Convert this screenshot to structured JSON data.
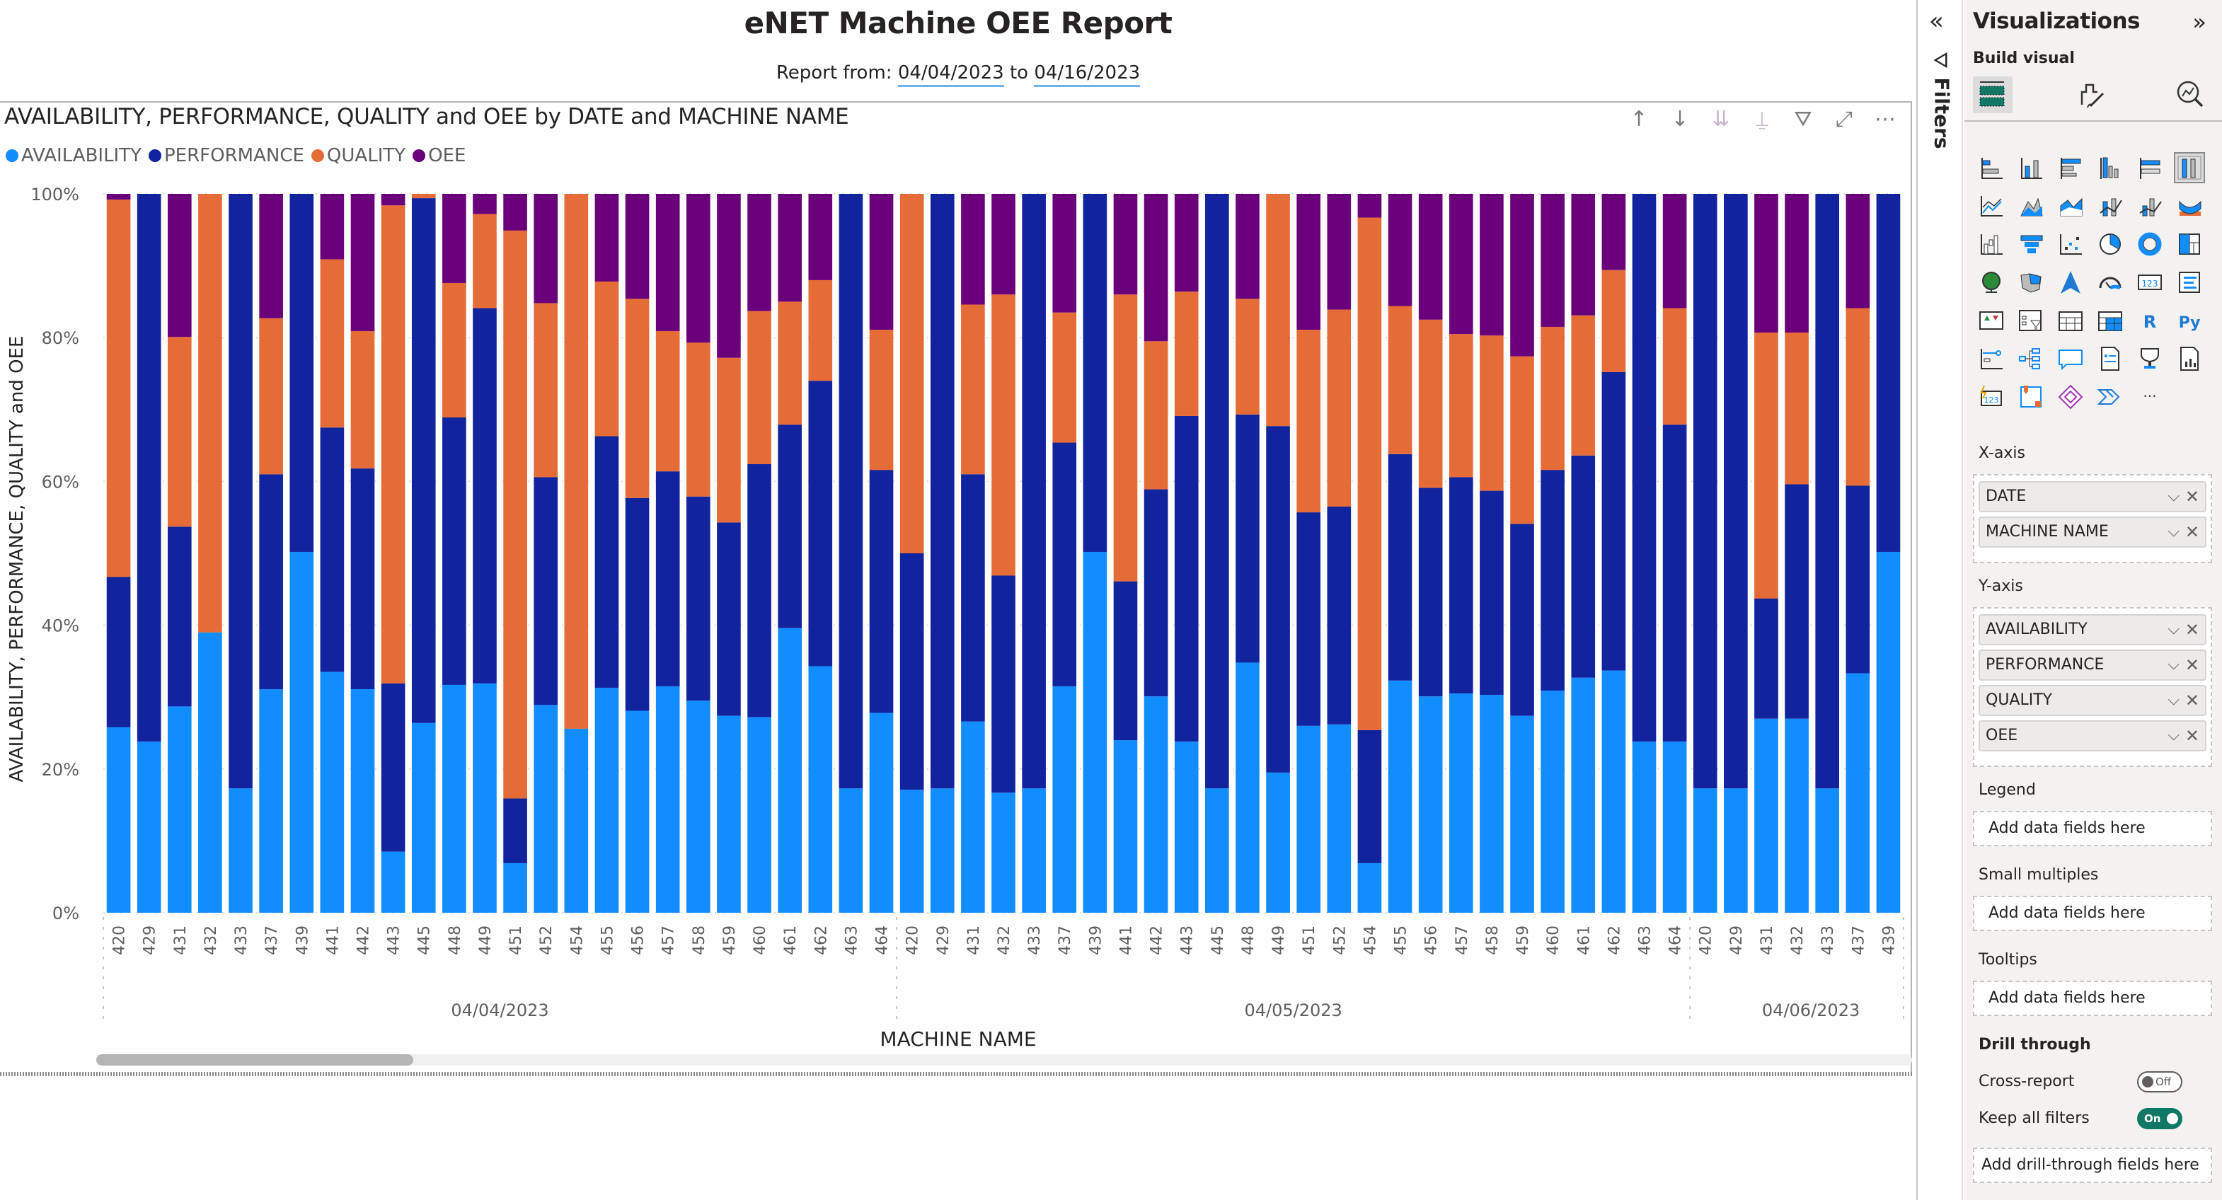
{
  "report": {
    "title": "eNET Machine OEE Report",
    "subtitle_prefix": "Report from:",
    "date_from": "04/04/2023",
    "subtitle_mid": "to",
    "date_to": "04/16/2023"
  },
  "visual": {
    "title": "AVAILABILITY, PERFORMANCE, QUALITY and OEE by DATE and MACHINE NAME",
    "toolbar": [
      {
        "name": "drill-up-icon",
        "glyph": "↑"
      },
      {
        "name": "drill-down-icon",
        "glyph": "↓"
      },
      {
        "name": "go-to-next-level-icon",
        "glyph": "⇊"
      },
      {
        "name": "expand-hierarchy-icon",
        "glyph": "⍊"
      },
      {
        "name": "filter-icon",
        "glyph": "⛛"
      },
      {
        "name": "focus-mode-icon",
        "glyph": "⤢"
      },
      {
        "name": "more-options-icon",
        "glyph": "⋯"
      }
    ]
  },
  "chart_data": {
    "type": "bar",
    "stacking": "100%",
    "title": "AVAILABILITY, PERFORMANCE, QUALITY and OEE by DATE and MACHINE NAME",
    "xlabel": "MACHINE NAME",
    "ylabel": "AVAILABILITY, PERFORMANCE, QUALITY and OEE",
    "ylim": [
      0,
      100
    ],
    "yticks": [
      "0%",
      "20%",
      "40%",
      "60%",
      "80%",
      "100%"
    ],
    "legend_position": "top-left",
    "colors": {
      "AVAILABILITY": "#118dff",
      "PERFORMANCE": "#12239e",
      "QUALITY": "#e66c37",
      "OEE": "#6b007b"
    },
    "groups": [
      {
        "label": "04/04/2023",
        "count": 26
      },
      {
        "label": "04/05/2023",
        "count": 26
      },
      {
        "label": "04/06/2023",
        "count": 7
      }
    ],
    "categories": [
      "420",
      "429",
      "431",
      "432",
      "433",
      "437",
      "439",
      "441",
      "442",
      "443",
      "445",
      "448",
      "449",
      "451",
      "452",
      "454",
      "455",
      "456",
      "457",
      "458",
      "459",
      "460",
      "461",
      "462",
      "463",
      "464",
      "420",
      "429",
      "431",
      "432",
      "433",
      "437",
      "439",
      "441",
      "442",
      "443",
      "445",
      "448",
      "449",
      "451",
      "452",
      "454",
      "455",
      "456",
      "457",
      "458",
      "459",
      "460",
      "461",
      "462",
      "463",
      "464",
      "420",
      "429",
      "431",
      "432",
      "433",
      "437",
      "439"
    ],
    "series": [
      {
        "name": "AVAILABILITY",
        "values": [
          25.8,
          23.8,
          28.7,
          39.0,
          17.3,
          31.1,
          50.2,
          33.5,
          31.1,
          8.5,
          26.4,
          31.7,
          31.9,
          6.9,
          28.9,
          25.6,
          31.3,
          28.1,
          31.5,
          29.5,
          27.4,
          27.2,
          39.6,
          34.3,
          17.3,
          27.8,
          17.1,
          17.3,
          26.6,
          16.7,
          17.3,
          31.5,
          50.2,
          24.0,
          30.1,
          23.8,
          17.3,
          34.8,
          19.5,
          26.0,
          26.2,
          6.9,
          32.3,
          30.1,
          30.5,
          30.3,
          27.4,
          30.9,
          32.7,
          33.7,
          23.8,
          23.8,
          17.3,
          17.3,
          27.0,
          27.0,
          17.3,
          33.3,
          50.2
        ]
      },
      {
        "name": "PERFORMANCE",
        "values": [
          20.9,
          76.2,
          25.0,
          0.0,
          82.7,
          29.9,
          49.8,
          34.0,
          30.7,
          23.4,
          73.0,
          37.2,
          52.2,
          9.0,
          31.7,
          0.0,
          35.0,
          29.6,
          29.9,
          28.4,
          26.9,
          35.2,
          28.3,
          39.7,
          82.7,
          33.8,
          32.9,
          82.7,
          34.4,
          30.2,
          82.7,
          33.9,
          49.8,
          22.1,
          28.8,
          45.3,
          82.7,
          34.5,
          48.2,
          29.7,
          30.3,
          18.5,
          31.5,
          29.0,
          30.1,
          28.4,
          26.7,
          30.7,
          30.9,
          41.5,
          76.2,
          44.1,
          82.7,
          82.7,
          16.7,
          32.6,
          82.7,
          26.1,
          49.8
        ]
      },
      {
        "name": "QUALITY",
        "values": [
          52.5,
          0.0,
          26.4,
          61.0,
          0.0,
          21.7,
          0.0,
          23.4,
          19.1,
          66.5,
          0.6,
          18.7,
          13.1,
          79.0,
          24.2,
          74.4,
          21.5,
          27.7,
          19.5,
          21.4,
          22.9,
          21.3,
          17.1,
          14.0,
          0.0,
          19.5,
          50.0,
          0.0,
          23.6,
          39.1,
          0.0,
          18.1,
          0.0,
          39.9,
          20.6,
          17.3,
          0.0,
          16.1,
          32.3,
          25.4,
          27.4,
          71.3,
          20.6,
          23.4,
          19.9,
          21.6,
          23.3,
          19.9,
          19.5,
          14.2,
          0.0,
          16.2,
          0.0,
          0.0,
          37.0,
          21.1,
          0.0,
          24.7,
          0.0
        ]
      },
      {
        "name": "OEE",
        "values": [
          0.8,
          0.0,
          19.9,
          0.0,
          0.0,
          17.3,
          0.0,
          9.1,
          19.1,
          1.6,
          0.0,
          12.4,
          2.8,
          5.1,
          15.2,
          0.0,
          12.2,
          14.6,
          19.1,
          20.7,
          22.8,
          16.3,
          15.0,
          12.0,
          0.0,
          18.9,
          0.0,
          0.0,
          15.4,
          14.0,
          0.0,
          16.5,
          0.0,
          14.0,
          20.5,
          13.6,
          0.0,
          14.6,
          0.0,
          18.9,
          16.1,
          3.3,
          15.6,
          17.5,
          19.5,
          19.7,
          22.6,
          18.5,
          16.9,
          10.6,
          0.0,
          15.9,
          0.0,
          0.0,
          19.3,
          19.3,
          0.0,
          15.9,
          0.0
        ]
      }
    ]
  },
  "legend": [
    "AVAILABILITY",
    "PERFORMANCE",
    "QUALITY",
    "OEE"
  ],
  "filters_pane": {
    "label": "Filters",
    "collapse_icon": "«",
    "filter_icon": "⛛"
  },
  "viz_pane": {
    "title": "Visualizations",
    "expand_icon": "»",
    "build_visual": "Build visual",
    "tabs": [
      "build-visual-tab",
      "format-visual-tab",
      "analytics-tab"
    ],
    "x_axis_label": "X-axis",
    "x_axis_fields": [
      "DATE",
      "MACHINE NAME"
    ],
    "y_axis_label": "Y-axis",
    "y_axis_fields": [
      "AVAILABILITY",
      "PERFORMANCE",
      "QUALITY",
      "OEE"
    ],
    "legend_label": "Legend",
    "small_multiples_label": "Small multiples",
    "tooltips_label": "Tooltips",
    "add_fields": "Add data fields here",
    "drill_through_label": "Drill through",
    "cross_report_label": "Cross-report",
    "cross_report_state": "Off",
    "keep_filters_label": "Keep all filters",
    "keep_filters_state": "On",
    "add_drill_fields": "Add drill-through fields here",
    "more_visuals": "···",
    "chevron": "⌵",
    "remove": "✕"
  }
}
